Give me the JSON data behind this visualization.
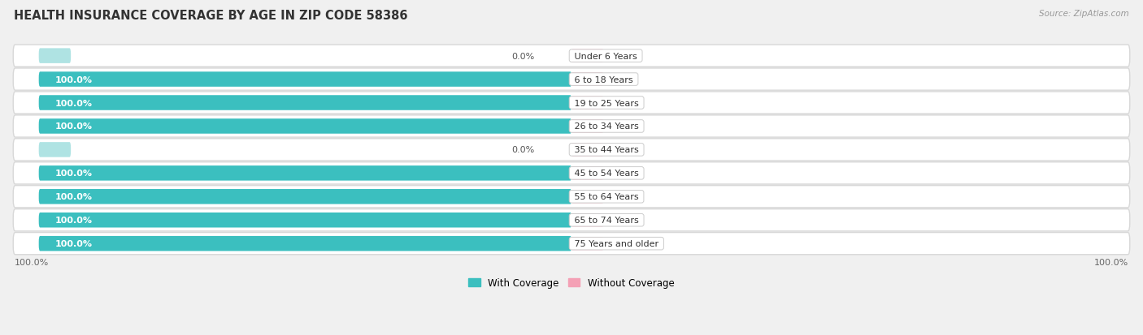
{
  "title": "HEALTH INSURANCE COVERAGE BY AGE IN ZIP CODE 58386",
  "source": "Source: ZipAtlas.com",
  "categories": [
    "Under 6 Years",
    "6 to 18 Years",
    "19 to 25 Years",
    "26 to 34 Years",
    "35 to 44 Years",
    "45 to 54 Years",
    "55 to 64 Years",
    "65 to 74 Years",
    "75 Years and older"
  ],
  "with_coverage": [
    0.0,
    100.0,
    100.0,
    100.0,
    0.0,
    100.0,
    100.0,
    100.0,
    100.0
  ],
  "without_coverage": [
    0.0,
    0.0,
    0.0,
    0.0,
    0.0,
    0.0,
    0.0,
    0.0,
    0.0
  ],
  "color_with": "#3BBFBF",
  "color_with_stub": "#8DD8D8",
  "color_without": "#F4A0B5",
  "bg_color": "#F0F0F0",
  "row_bg": "#F8F8F8",
  "row_border": "#D8D8D8",
  "title_fontsize": 10.5,
  "label_fontsize": 8,
  "category_fontsize": 8,
  "legend_fontsize": 8.5,
  "source_fontsize": 7.5
}
